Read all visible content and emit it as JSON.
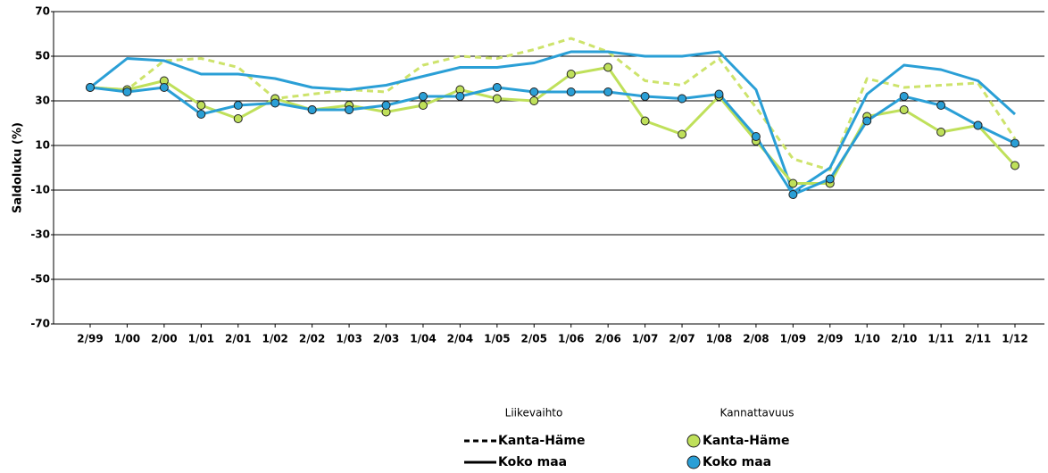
{
  "chart_data": {
    "type": "line",
    "y_label": "Saldoluku (%)",
    "categories": [
      "2/99",
      "1/00",
      "2/00",
      "1/01",
      "2/01",
      "1/02",
      "2/02",
      "1/03",
      "2/03",
      "1/04",
      "2/04",
      "1/05",
      "2/05",
      "1/06",
      "2/06",
      "1/07",
      "2/07",
      "1/08",
      "2/08",
      "1/09",
      "2/09",
      "1/10",
      "2/10",
      "1/11",
      "2/11",
      "1/12"
    ],
    "ylim": [
      -70,
      70
    ],
    "yticks": [
      -70,
      -50,
      -30,
      -10,
      10,
      30,
      50,
      70
    ],
    "grid": true,
    "groups": [
      {
        "title": "Liikevaihto",
        "series": [
          {
            "name": "Kanta-Häme",
            "color": "#cde36b",
            "style": "dashed",
            "markers": false,
            "values": [
              36,
              35,
              48,
              49,
              45,
              31,
              33,
              35,
              34,
              46,
              50,
              49,
              53,
              58,
              52,
              39,
              37,
              49,
              27,
              4,
              -1,
              40,
              36,
              37,
              38,
              13
            ]
          },
          {
            "name": "Koko maa",
            "color": "#2a9fd6",
            "style": "solid",
            "markers": false,
            "values": [
              36,
              49,
              48,
              42,
              42,
              40,
              36,
              35,
              37,
              41,
              45,
              45,
              47,
              52,
              52,
              50,
              50,
              52,
              35,
              -11,
              0,
              33,
              46,
              44,
              39,
              24
            ]
          }
        ]
      },
      {
        "title": "Kannattavuus",
        "series": [
          {
            "name": "Kanta-Häme",
            "color": "#bfe05a",
            "style": "solid",
            "markers": true,
            "values": [
              36,
              35,
              39,
              28,
              22,
              31,
              26,
              28,
              25,
              28,
              35,
              31,
              30,
              42,
              45,
              21,
              15,
              32,
              12,
              -7,
              -7,
              23,
              26,
              16,
              19,
              1
            ]
          },
          {
            "name": "Koko maa",
            "color": "#2a9fd6",
            "style": "solid",
            "markers": true,
            "values": [
              36,
              34,
              36,
              24,
              28,
              29,
              26,
              26,
              28,
              32,
              32,
              36,
              34,
              34,
              34,
              32,
              31,
              33,
              14,
              -12,
              -5,
              21,
              32,
              28,
              19,
              11
            ]
          }
        ]
      }
    ]
  }
}
